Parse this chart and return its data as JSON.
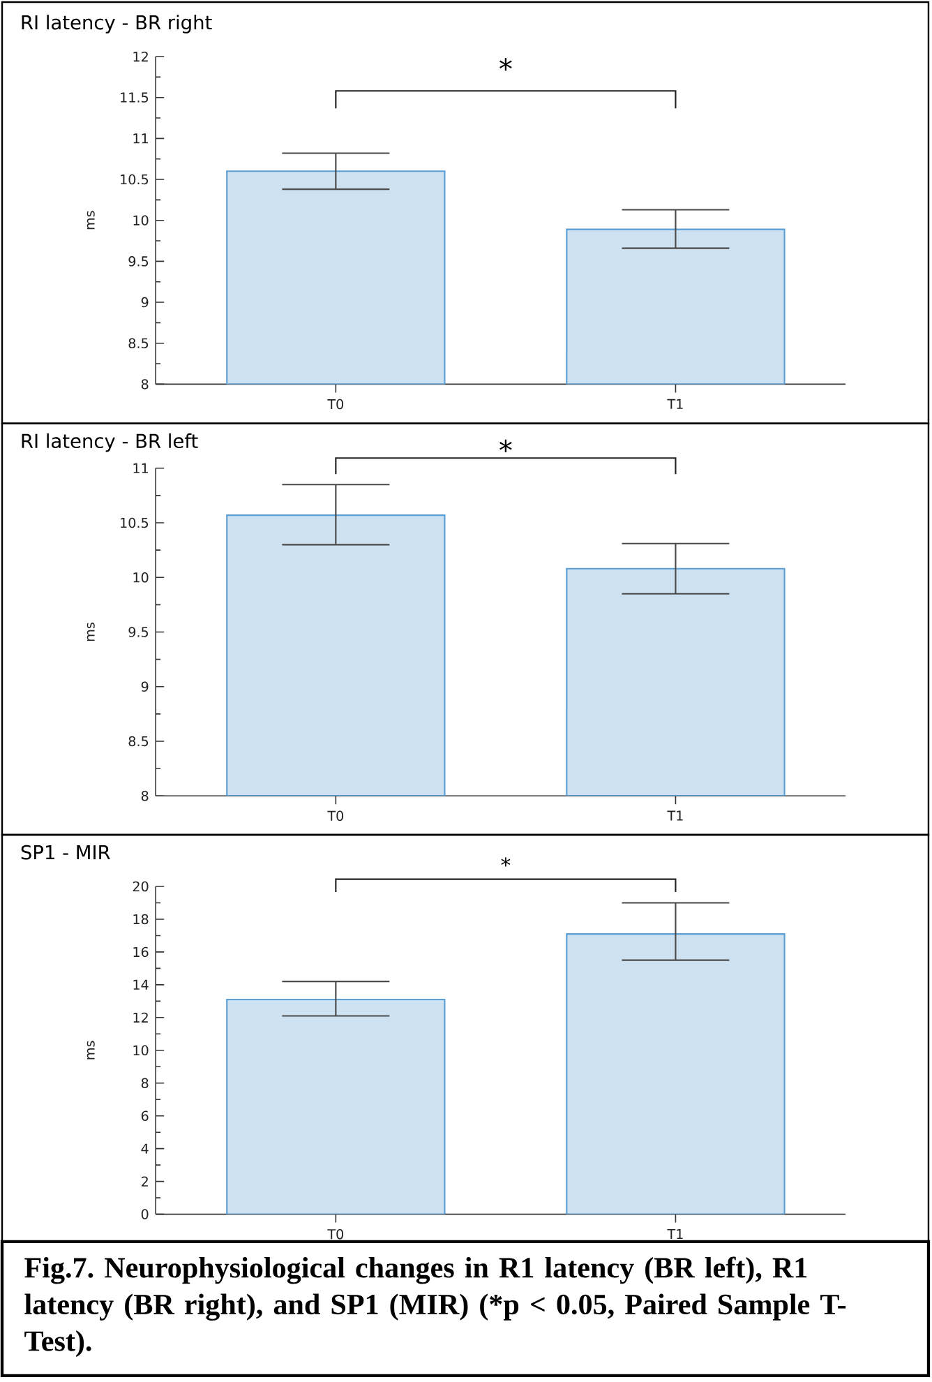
{
  "chart_data": [
    {
      "type": "bar",
      "title": "RI latency - BR right",
      "ylabel": "ms",
      "categories": [
        "T0",
        "T1"
      ],
      "values": [
        10.6,
        9.89
      ],
      "errors": [
        [
          10.38,
          10.82
        ],
        [
          9.66,
          10.13
        ]
      ],
      "color": "#cde1f0",
      "ylim": [
        8,
        12
      ],
      "yticks": [
        8,
        8.5,
        9,
        9.5,
        10,
        10.5,
        11,
        11.5,
        12
      ],
      "annotations": [
        "*"
      ]
    },
    {
      "type": "bar",
      "title": "RI latency - BR left",
      "ylabel": "ms",
      "categories": [
        "T0",
        "T1"
      ],
      "values": [
        10.57,
        10.08
      ],
      "errors": [
        [
          10.3,
          10.85
        ],
        [
          9.85,
          10.31
        ]
      ],
      "color": "#cde1f0",
      "ylim": [
        8,
        11
      ],
      "yticks": [
        8,
        8.5,
        9,
        9.5,
        10,
        10.5,
        11
      ],
      "annotations": [
        "*"
      ]
    },
    {
      "type": "bar",
      "title": "SP1 - MIR",
      "ylabel": "ms",
      "categories": [
        "T0",
        "T1"
      ],
      "values": [
        13.1,
        17.1
      ],
      "errors": [
        [
          12.1,
          14.2
        ],
        [
          15.5,
          19.0
        ]
      ],
      "color": "#cde1f0",
      "ylim": [
        0,
        20
      ],
      "yticks": [
        0,
        2,
        4,
        6,
        8,
        10,
        12,
        14,
        16,
        18,
        20
      ],
      "annotations": [
        "*",
        "Fig.7. Neurophysiological changes in R1 latency (BR left), R1 latency (BR right), and SP1 (MIR) (*p < 0.05, Paired Sample T-Test)."
      ]
    }
  ]
}
